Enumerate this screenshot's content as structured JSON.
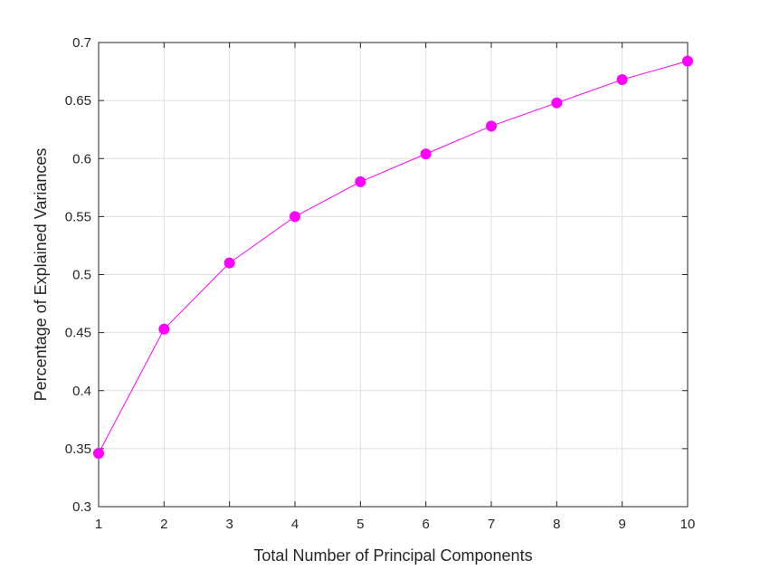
{
  "chart_data": {
    "type": "line",
    "title": "",
    "xlabel": "Total Number of Principal Components",
    "ylabel": "Percentage of Explained Variances",
    "xlim": [
      1,
      10
    ],
    "ylim": [
      0.3,
      0.7
    ],
    "x_ticks": [
      "1",
      "2",
      "3",
      "4",
      "5",
      "6",
      "7",
      "8",
      "9",
      "10"
    ],
    "y_ticks": [
      "0.3",
      "0.35",
      "0.4",
      "0.45",
      "0.5",
      "0.55",
      "0.6",
      "0.65",
      "0.7"
    ],
    "grid": true,
    "series": [
      {
        "color": "#ff00ff",
        "marker": "circle",
        "x": [
          1,
          2,
          3,
          4,
          5,
          6,
          7,
          8,
          9,
          10
        ],
        "y": [
          0.346,
          0.453,
          0.51,
          0.55,
          0.58,
          0.604,
          0.628,
          0.648,
          0.668,
          0.684
        ]
      }
    ]
  }
}
